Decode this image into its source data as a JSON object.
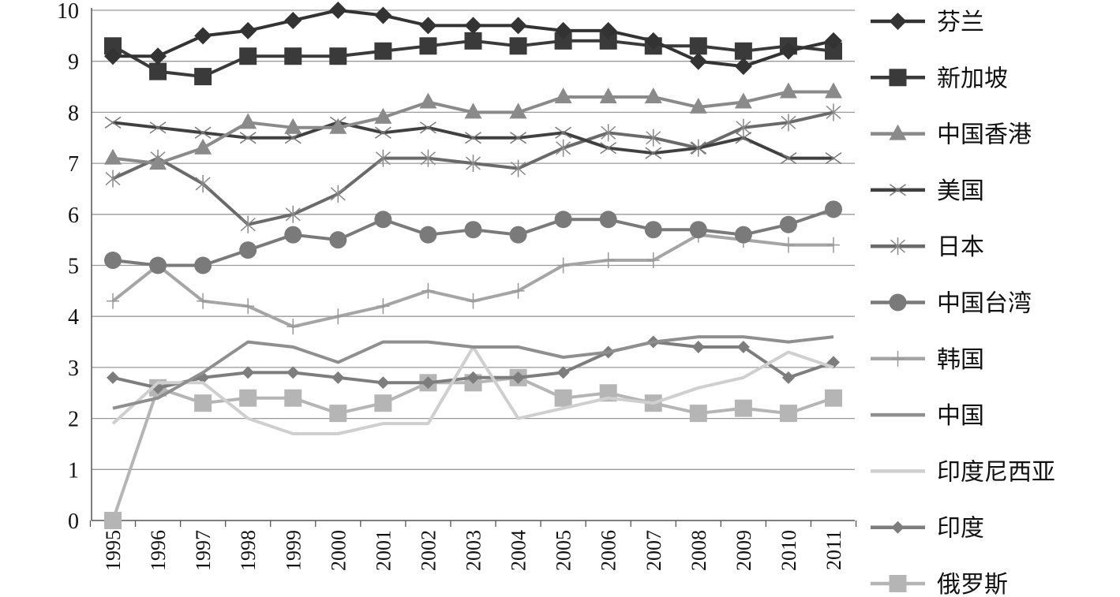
{
  "chart_data": {
    "type": "line",
    "title": "",
    "xlabel": "",
    "ylabel": "",
    "ylim": [
      0,
      10
    ],
    "yticks": [
      "0",
      "1",
      "2",
      "3",
      "4",
      "5",
      "6",
      "7",
      "8",
      "9",
      "10"
    ],
    "grid": "horizontal",
    "legend_position": "right",
    "x": [
      "1995",
      "1996",
      "1997",
      "1998",
      "1999",
      "2000",
      "2001",
      "2002",
      "2003",
      "2004",
      "2005",
      "2006",
      "2007",
      "2008",
      "2009",
      "2010",
      "2011"
    ],
    "series": [
      {
        "name": "芬兰",
        "color": "#333333",
        "marker": "diamond",
        "values": [
          9.1,
          9.1,
          9.5,
          9.6,
          9.8,
          10.0,
          9.9,
          9.7,
          9.7,
          9.7,
          9.6,
          9.6,
          9.4,
          9.0,
          8.9,
          9.2,
          9.4
        ]
      },
      {
        "name": "新加坡",
        "color": "#3a3a3a",
        "marker": "square",
        "values": [
          9.3,
          8.8,
          8.7,
          9.1,
          9.1,
          9.1,
          9.2,
          9.3,
          9.4,
          9.3,
          9.4,
          9.4,
          9.3,
          9.3,
          9.2,
          9.3,
          9.2
        ]
      },
      {
        "name": "中国香港",
        "color": "#8a8a8a",
        "marker": "triangle",
        "values": [
          7.1,
          7.0,
          7.3,
          7.8,
          7.7,
          7.7,
          7.9,
          8.2,
          8.0,
          8.0,
          8.3,
          8.3,
          8.3,
          8.1,
          8.2,
          8.4,
          8.4
        ]
      },
      {
        "name": "美国",
        "color": "#404040",
        "marker": "x",
        "values": [
          7.8,
          7.7,
          7.6,
          7.5,
          7.5,
          7.8,
          7.6,
          7.7,
          7.5,
          7.5,
          7.6,
          7.3,
          7.2,
          7.3,
          7.5,
          7.1,
          7.1
        ]
      },
      {
        "name": "日本",
        "color": "#6a6a6a",
        "marker": "star",
        "values": [
          6.7,
          7.1,
          6.6,
          5.8,
          6.0,
          6.4,
          7.1,
          7.1,
          7.0,
          6.9,
          7.3,
          7.6,
          7.5,
          7.3,
          7.7,
          7.8,
          8.0
        ]
      },
      {
        "name": "中国台湾",
        "color": "#7a7a7a",
        "marker": "circle",
        "values": [
          5.1,
          5.0,
          5.0,
          5.3,
          5.6,
          5.5,
          5.9,
          5.6,
          5.7,
          5.6,
          5.9,
          5.9,
          5.7,
          5.7,
          5.6,
          5.8,
          6.1
        ]
      },
      {
        "name": "韩国",
        "color": "#a5a5a5",
        "marker": "plus",
        "values": [
          4.3,
          5.0,
          4.3,
          4.2,
          3.8,
          4.0,
          4.2,
          4.5,
          4.3,
          4.5,
          5.0,
          5.1,
          5.1,
          5.6,
          5.5,
          5.4,
          5.4
        ]
      },
      {
        "name": "中国",
        "color": "#8f8f8f",
        "marker": "none",
        "values": [
          2.2,
          2.4,
          2.9,
          3.5,
          3.4,
          3.1,
          3.5,
          3.5,
          3.4,
          3.4,
          3.2,
          3.3,
          3.5,
          3.6,
          3.6,
          3.5,
          3.6
        ]
      },
      {
        "name": "印度尼西亚",
        "color": "#cfcfcf",
        "marker": "none",
        "values": [
          1.9,
          2.7,
          2.7,
          2.0,
          1.7,
          1.7,
          1.9,
          1.9,
          3.4,
          2.0,
          2.2,
          2.4,
          2.3,
          2.6,
          2.8,
          3.3,
          3.0
        ]
      },
      {
        "name": "印度",
        "color": "#7d7d7d",
        "marker": "diamond-small",
        "values": [
          2.8,
          2.6,
          2.8,
          2.9,
          2.9,
          2.8,
          2.7,
          2.7,
          2.8,
          2.8,
          2.9,
          3.3,
          3.5,
          3.4,
          3.4,
          2.8,
          3.1
        ]
      },
      {
        "name": "俄罗斯",
        "color": "#b5b5b5",
        "marker": "square",
        "values": [
          0.0,
          2.6,
          2.3,
          2.4,
          2.4,
          2.1,
          2.3,
          2.7,
          2.7,
          2.8,
          2.4,
          2.5,
          2.3,
          2.1,
          2.2,
          2.1,
          2.4
        ]
      }
    ]
  }
}
